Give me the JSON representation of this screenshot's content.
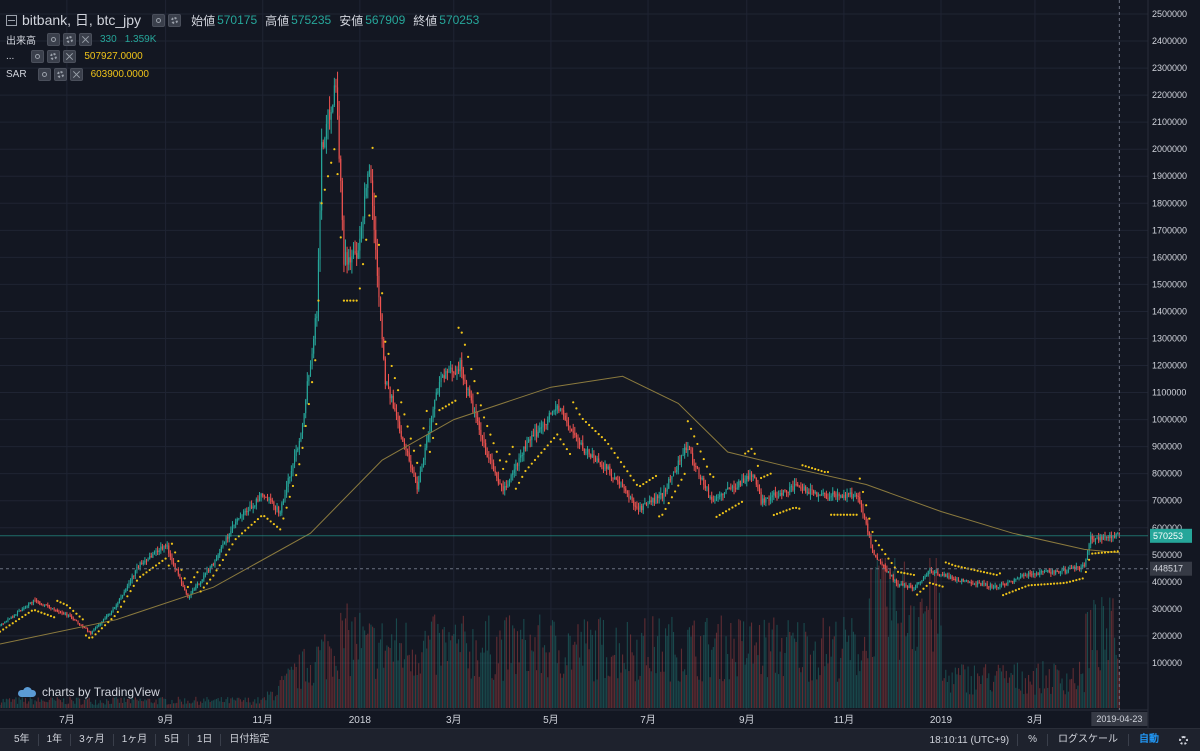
{
  "legend": {
    "title": "bitbank, 日, btc_jpy",
    "open_label": "始値",
    "open": "570175",
    "high_label": "高値",
    "high": "575235",
    "low_label": "安値",
    "low": "567909",
    "close_label": "終値",
    "close": "570253",
    "volume_label": "出来高",
    "volume_value": "330",
    "volume_ma": "1.359K",
    "ma_label": "...",
    "ma_value": "507927.0000",
    "sar_label": "SAR",
    "sar_value": "603900.0000"
  },
  "watermark": "charts by TradingView",
  "toolbar": {
    "ranges": [
      "5年",
      "1年",
      "3ヶ月",
      "1ヶ月",
      "5日",
      "1日",
      "日付指定"
    ],
    "time": "18:10:11 (UTC+9)",
    "percent": "%",
    "log_scale": "ログスケール",
    "auto": "自動"
  },
  "colors": {
    "background": "#131722",
    "up": "#26a69a",
    "down": "#ef5350",
    "sar": "#f0c419",
    "ma": "#8b7a3e",
    "crosshair_label": "#363a45"
  },
  "chart_data": {
    "type": "candlestick",
    "title": "bitbank, 日, btc_jpy",
    "ylim": [
      0,
      2500000
    ],
    "yticks": [
      100000,
      200000,
      300000,
      400000,
      500000,
      600000,
      700000,
      800000,
      900000,
      1000000,
      1100000,
      1200000,
      1300000,
      1400000,
      1500000,
      1600000,
      1700000,
      1800000,
      1900000,
      2000000,
      2100000,
      2200000,
      2300000,
      2400000,
      2500000
    ],
    "x_ticks": [
      {
        "date": "2017-07-01",
        "label": "7月"
      },
      {
        "date": "2017-09-01",
        "label": "9月"
      },
      {
        "date": "2017-11-01",
        "label": "11月"
      },
      {
        "date": "2018-01-01",
        "label": "2018"
      },
      {
        "date": "2018-03-01",
        "label": "3月"
      },
      {
        "date": "2018-05-01",
        "label": "5月"
      },
      {
        "date": "2018-07-01",
        "label": "7月"
      },
      {
        "date": "2018-09-01",
        "label": "9月"
      },
      {
        "date": "2018-11-01",
        "label": "11月"
      },
      {
        "date": "2019-01-01",
        "label": "2019"
      },
      {
        "date": "2019-03-01",
        "label": "3月"
      }
    ],
    "x_range": [
      "2017-05-20",
      "2019-05-11"
    ],
    "last_price": 570253,
    "last_price_label": "570253",
    "crosshair": {
      "price": 448517,
      "price_label": "448517",
      "date": "2019-04-23",
      "date_label": "2019-04-23"
    },
    "price_path": [
      {
        "date": "2017-05-20",
        "close": 240000
      },
      {
        "date": "2017-06-10",
        "close": 330000
      },
      {
        "date": "2017-07-01",
        "close": 280000
      },
      {
        "date": "2017-07-16",
        "close": 210000
      },
      {
        "date": "2017-08-01",
        "close": 310000
      },
      {
        "date": "2017-08-15",
        "close": 460000
      },
      {
        "date": "2017-09-01",
        "close": 540000
      },
      {
        "date": "2017-09-15",
        "close": 340000
      },
      {
        "date": "2017-10-01",
        "close": 470000
      },
      {
        "date": "2017-10-15",
        "close": 620000
      },
      {
        "date": "2017-11-01",
        "close": 720000
      },
      {
        "date": "2017-11-12",
        "close": 660000
      },
      {
        "date": "2017-11-25",
        "close": 950000
      },
      {
        "date": "2017-12-05",
        "close": 1400000
      },
      {
        "date": "2017-12-08",
        "close": 2000000
      },
      {
        "date": "2017-12-17",
        "close": 2250000
      },
      {
        "date": "2017-12-22",
        "close": 1600000
      },
      {
        "date": "2017-12-31",
        "close": 1600000
      },
      {
        "date": "2018-01-07",
        "close": 1950000
      },
      {
        "date": "2018-01-17",
        "close": 1150000
      },
      {
        "date": "2018-02-06",
        "close": 750000
      },
      {
        "date": "2018-02-20",
        "close": 1150000
      },
      {
        "date": "2018-03-05",
        "close": 1200000
      },
      {
        "date": "2018-03-20",
        "close": 900000
      },
      {
        "date": "2018-04-01",
        "close": 730000
      },
      {
        "date": "2018-04-15",
        "close": 900000
      },
      {
        "date": "2018-05-05",
        "close": 1050000
      },
      {
        "date": "2018-05-20",
        "close": 900000
      },
      {
        "date": "2018-06-05",
        "close": 820000
      },
      {
        "date": "2018-06-25",
        "close": 670000
      },
      {
        "date": "2018-07-10",
        "close": 720000
      },
      {
        "date": "2018-07-25",
        "close": 900000
      },
      {
        "date": "2018-08-10",
        "close": 700000
      },
      {
        "date": "2018-09-05",
        "close": 800000
      },
      {
        "date": "2018-09-10",
        "close": 700000
      },
      {
        "date": "2018-10-01",
        "close": 750000
      },
      {
        "date": "2018-10-20",
        "close": 720000
      },
      {
        "date": "2018-11-10",
        "close": 720000
      },
      {
        "date": "2018-11-20",
        "close": 500000
      },
      {
        "date": "2018-12-05",
        "close": 390000
      },
      {
        "date": "2018-12-15",
        "close": 380000
      },
      {
        "date": "2018-12-25",
        "close": 440000
      },
      {
        "date": "2019-01-10",
        "close": 410000
      },
      {
        "date": "2019-02-05",
        "close": 380000
      },
      {
        "date": "2019-02-25",
        "close": 430000
      },
      {
        "date": "2019-03-20",
        "close": 440000
      },
      {
        "date": "2019-04-01",
        "close": 460000
      },
      {
        "date": "2019-04-05",
        "close": 560000
      },
      {
        "date": "2019-04-23",
        "close": 570253
      }
    ],
    "ma_path": [
      {
        "date": "2017-05-20",
        "value": 170000
      },
      {
        "date": "2017-08-01",
        "value": 260000
      },
      {
        "date": "2017-10-01",
        "value": 380000
      },
      {
        "date": "2017-12-01",
        "value": 580000
      },
      {
        "date": "2018-01-15",
        "value": 850000
      },
      {
        "date": "2018-03-01",
        "value": 1000000
      },
      {
        "date": "2018-05-01",
        "value": 1120000
      },
      {
        "date": "2018-06-15",
        "value": 1160000
      },
      {
        "date": "2018-07-20",
        "value": 1060000
      },
      {
        "date": "2018-08-20",
        "value": 880000
      },
      {
        "date": "2018-10-01",
        "value": 820000
      },
      {
        "date": "2018-11-15",
        "value": 760000
      },
      {
        "date": "2019-01-01",
        "value": 660000
      },
      {
        "date": "2019-02-15",
        "value": 580000
      },
      {
        "date": "2019-04-01",
        "value": 520000
      },
      {
        "date": "2019-04-23",
        "value": 507927
      }
    ],
    "volume_ylim": [
      0,
      1900000
    ]
  }
}
